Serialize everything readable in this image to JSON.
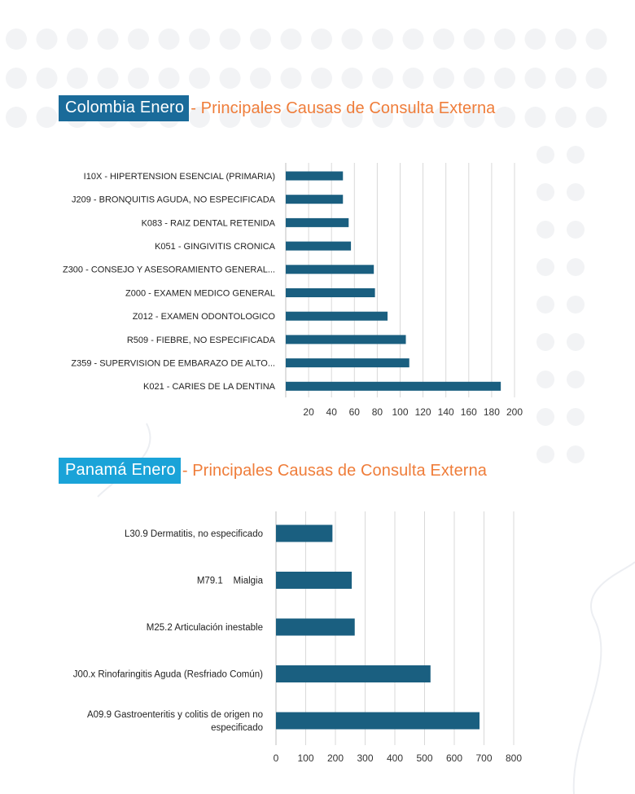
{
  "colors": {
    "bar": "#1a5f80",
    "title_orange": "#ef7d3a",
    "title_box_colombia": "#1a6b9a",
    "title_box_panama": "#1aa3d8",
    "gridline": "#d9d9d9",
    "background_dots": "#f2f3f5"
  },
  "sections": [
    {
      "title_highlight": "Colombia Enero",
      "title_rest": "- Principales Causas de Consulta Externa"
    },
    {
      "title_highlight": "Panamá Enero",
      "title_rest": "- Principales Causas de Consulta Externa"
    }
  ],
  "chart_data": [
    {
      "type": "bar",
      "orientation": "horizontal",
      "categories": [
        "I10X - HIPERTENSION ESENCIAL (PRIMARIA)",
        "J209 - BRONQUITIS AGUDA, NO ESPECIFICADA",
        "K083 - RAIZ DENTAL RETENIDA",
        "K051 - GINGIVITIS CRONICA",
        "Z300 - CONSEJO Y ASESORAMIENTO GENERAL...",
        "Z000 - EXAMEN MEDICO GENERAL",
        "Z012 - EXAMEN ODONTOLOGICO",
        "R509 - FIEBRE, NO ESPECIFICADA",
        "Z359 - SUPERVISION DE EMBARAZO DE ALTO...",
        "K021 - CARIES DE LA DENTINA"
      ],
      "values": [
        50,
        50,
        55,
        57,
        77,
        78,
        89,
        105,
        108,
        188
      ],
      "xlim": [
        0,
        200
      ],
      "xticks": [
        20,
        40,
        60,
        80,
        100,
        120,
        140,
        160,
        180,
        200
      ],
      "grid": true,
      "title": "",
      "xlabel": "",
      "ylabel": ""
    },
    {
      "type": "bar",
      "orientation": "horizontal",
      "categories": [
        [
          "L30.9 Dermatitis, no especificado"
        ],
        [
          "M79.1    Mialgia"
        ],
        [
          "M25.2 Articulación inestable"
        ],
        [
          "J00.x Rinofaringitis Aguda (Resfriado Común)"
        ],
        [
          "A09.9 Gastroenteritis y colitis de origen no",
          "especificado"
        ]
      ],
      "values": [
        190,
        255,
        265,
        520,
        685
      ],
      "xlim": [
        0,
        800
      ],
      "xticks": [
        0,
        100,
        200,
        300,
        400,
        500,
        600,
        700,
        800
      ],
      "grid": true,
      "title": "",
      "xlabel": "",
      "ylabel": ""
    }
  ]
}
